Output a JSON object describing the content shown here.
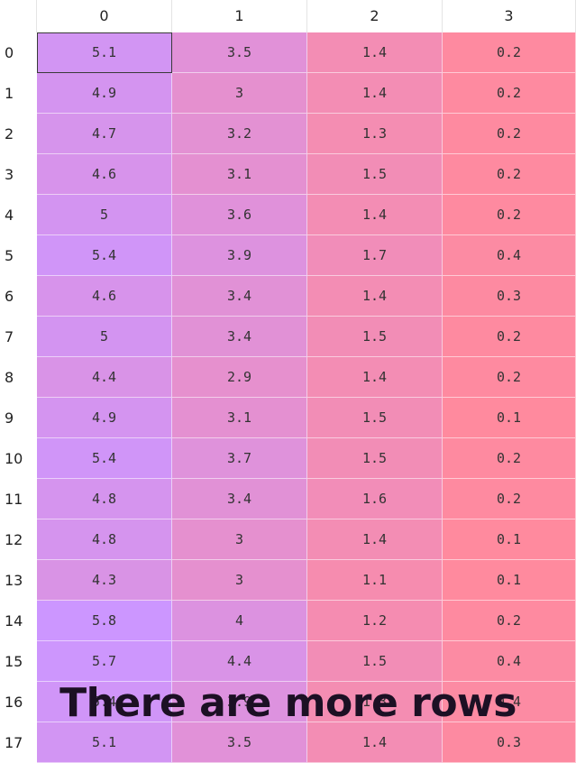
{
  "columns": [
    "0",
    "1",
    "2",
    "3"
  ],
  "rows": [
    {
      "label": "0",
      "values": [
        "5.1",
        "3.5",
        "1.4",
        "0.2"
      ]
    },
    {
      "label": "1",
      "values": [
        "4.9",
        "3",
        "1.4",
        "0.2"
      ]
    },
    {
      "label": "2",
      "values": [
        "4.7",
        "3.2",
        "1.3",
        "0.2"
      ]
    },
    {
      "label": "3",
      "values": [
        "4.6",
        "3.1",
        "1.5",
        "0.2"
      ]
    },
    {
      "label": "4",
      "values": [
        "5",
        "3.6",
        "1.4",
        "0.2"
      ]
    },
    {
      "label": "5",
      "values": [
        "5.4",
        "3.9",
        "1.7",
        "0.4"
      ]
    },
    {
      "label": "6",
      "values": [
        "4.6",
        "3.4",
        "1.4",
        "0.3"
      ]
    },
    {
      "label": "7",
      "values": [
        "5",
        "3.4",
        "1.5",
        "0.2"
      ]
    },
    {
      "label": "8",
      "values": [
        "4.4",
        "2.9",
        "1.4",
        "0.2"
      ]
    },
    {
      "label": "9",
      "values": [
        "4.9",
        "3.1",
        "1.5",
        "0.1"
      ]
    },
    {
      "label": "10",
      "values": [
        "5.4",
        "3.7",
        "1.5",
        "0.2"
      ]
    },
    {
      "label": "11",
      "values": [
        "4.8",
        "3.4",
        "1.6",
        "0.2"
      ]
    },
    {
      "label": "12",
      "values": [
        "4.8",
        "3",
        "1.4",
        "0.1"
      ]
    },
    {
      "label": "13",
      "values": [
        "4.3",
        "3",
        "1.1",
        "0.1"
      ]
    },
    {
      "label": "14",
      "values": [
        "5.8",
        "4",
        "1.2",
        "0.2"
      ]
    },
    {
      "label": "15",
      "values": [
        "5.7",
        "4.4",
        "1.5",
        "0.4"
      ]
    },
    {
      "label": "16",
      "values": [
        "5.4",
        "3.9",
        "1.3",
        "0.4"
      ]
    },
    {
      "label": "17",
      "values": [
        "5.1",
        "3.5",
        "1.4",
        "0.3"
      ]
    }
  ],
  "selected_cell": {
    "row": 0,
    "col": 0
  },
  "overlay_message": "There are more rows",
  "colors": {
    "low": "#ff8a9e",
    "high": "#cc96ff"
  }
}
